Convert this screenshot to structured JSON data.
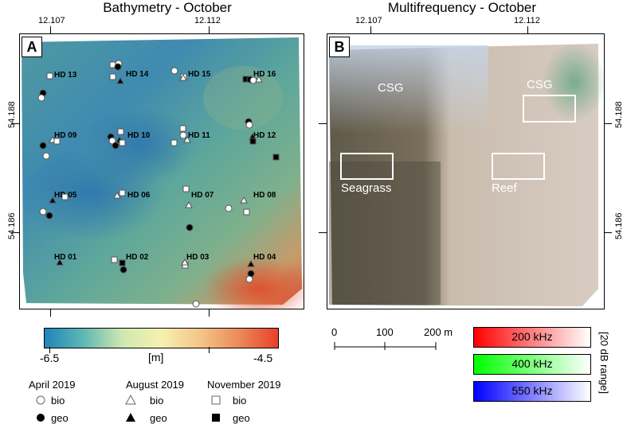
{
  "panel_a": {
    "title": "Bathymetry - October",
    "letter": "A",
    "top_ticks": [
      "12.107",
      "12.112"
    ],
    "left_ticks": [
      "54.188",
      "54.186"
    ],
    "stations": [
      "HD 13",
      "HD 14",
      "HD 15",
      "HD 16",
      "HD 09",
      "HD 10",
      "HD 11",
      "HD 12",
      "HD 05",
      "HD 06",
      "HD 07",
      "HD 08",
      "HD 01",
      "HD 02",
      "HD 03",
      "HD 04"
    ]
  },
  "panel_b": {
    "title": "Multifrequency - October",
    "letter": "B",
    "top_ticks": [
      "12.107",
      "12.112"
    ],
    "right_ticks": [
      "54.188",
      "54.186"
    ],
    "areas": [
      "CSG",
      "CSG",
      "Seagrass",
      "Reef"
    ]
  },
  "colorbar": {
    "min_label": "-6.5",
    "unit_label": "[m]",
    "max_label": "-4.5",
    "colors": [
      "#1f86b8",
      "#f7f0b0",
      "#e8402a"
    ]
  },
  "legend": {
    "groups": [
      {
        "title": "April 2019",
        "bio": "bio",
        "geo": "geo"
      },
      {
        "title": "August 2019",
        "bio": "bio",
        "geo": "geo"
      },
      {
        "title": "November 2019",
        "bio": "bio",
        "geo": "geo"
      }
    ]
  },
  "scalebar": {
    "labels": [
      "0",
      "100",
      "200 m"
    ]
  },
  "frequency": {
    "items": [
      {
        "label": "200 kHz",
        "color": "#ff0000"
      },
      {
        "label": "400 kHz",
        "color": "#00ff00"
      },
      {
        "label": "550 kHz",
        "color": "#0000ff"
      }
    ],
    "range_label": "[20 dB range]"
  }
}
